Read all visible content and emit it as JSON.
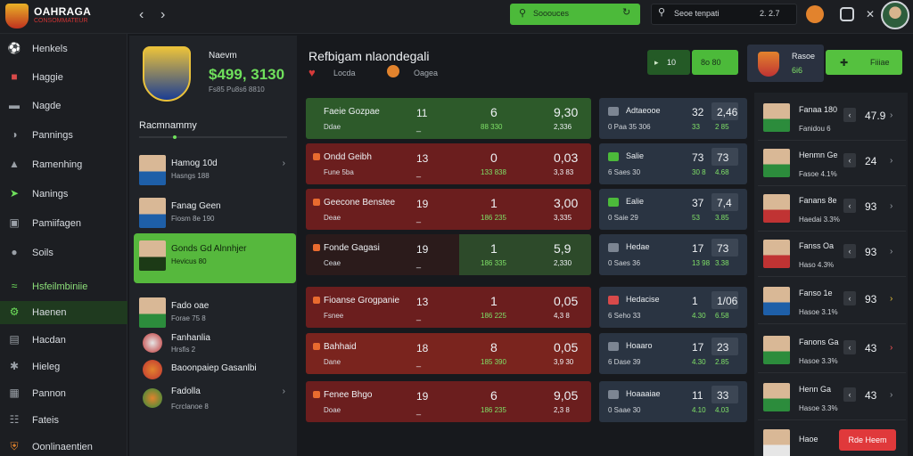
{
  "brand": {
    "name": "OAHRAGA",
    "sub": "CONSOMMATEUR"
  },
  "topbar": {
    "green_field": "Sooouces",
    "search_text": "Seoe tenpati",
    "search_count": "2. 2.7"
  },
  "sidebar": {
    "items": [
      {
        "label": "Henkels",
        "icon": "football-icon"
      },
      {
        "label": "Haggie",
        "icon": "shirt-icon"
      },
      {
        "label": "Nagde",
        "icon": "car-icon"
      },
      {
        "label": "Pannings",
        "icon": "dome-icon"
      },
      {
        "label": "Ramenhing",
        "icon": "trophy-icon"
      },
      {
        "label": "Nanings",
        "icon": "plane-icon"
      },
      {
        "label": "Pamiifagen",
        "icon": "pitch-icon"
      },
      {
        "label": "Soils",
        "icon": "ball-icon"
      },
      {
        "label": "Hsfeilmbiniie",
        "icon": "wave-icon"
      },
      {
        "label": "Haenen",
        "icon": "gear-icon"
      },
      {
        "label": "Hacdan",
        "icon": "table-icon"
      },
      {
        "label": "Hieleg",
        "icon": "tool-icon"
      },
      {
        "label": "Pannon",
        "icon": "grid-icon"
      },
      {
        "label": "Fateis",
        "icon": "calendar-icon"
      },
      {
        "label": "Oonlinaentien",
        "icon": "shield-icon"
      }
    ]
  },
  "panel": {
    "balance_label": "Naevm",
    "balance_value": "$499, 3130",
    "balance_sub": "Fs85 Pu8s6 8810",
    "ranking_title": "Racmnammy",
    "players": [
      {
        "name": "Hamog 10d",
        "sub": "Hasngs 188"
      },
      {
        "name": "Fanag Geen",
        "sub": "Fiosm 8e 190"
      },
      {
        "name": "Gonds Gd Alnnhjer",
        "sub": "Hevicus   80"
      },
      {
        "name": "Fado oae",
        "sub": "Forae 75 8"
      },
      {
        "name": "Fanhanlia",
        "sub": "Hrsfis 2"
      },
      {
        "name": "Baoonpaiep Gasanlbi"
      },
      {
        "name": "Fadolla",
        "sub": "Fcrclanoe 8"
      }
    ]
  },
  "header": {
    "title": "Refbigam nlaondegali",
    "sub1": "Locda",
    "sub2": "Oagea",
    "btn_a": "10",
    "btn_b": "8o 80",
    "team_name": "Rasoe",
    "team_value": "6i6",
    "btn_c": "Fiiiae"
  },
  "matches": [
    {
      "team": "Faeie Gozpae",
      "sub": "Ddae",
      "n1": "11",
      "n2": "_",
      "m1": "6",
      "m2": "88 330",
      "r1": "9,30",
      "r2": "2,336"
    },
    {
      "team": "Ondd Geibh",
      "sub": "Fune 5ba",
      "n1": "13",
      "n2": "_",
      "m1": "0",
      "m2": "133 838",
      "r1": "0,03",
      "r2": "3,3 83"
    },
    {
      "team": "Geecone Benstee",
      "sub": "Deae",
      "n1": "19",
      "n2": "_",
      "m1": "1",
      "m2": "186 235",
      "r1": "3,00",
      "r2": "3,335"
    },
    {
      "team": "Fonde Gagasi",
      "sub": "Ceae",
      "n1": "19",
      "n2": "_",
      "m1": "1",
      "m2": "186 335",
      "r1": "5,9",
      "r2": "2,330"
    },
    {
      "team": "Fioanse Grogpanie",
      "sub": "Fsnee",
      "n1": "13",
      "n2": "_",
      "m1": "1",
      "m2": "186 225",
      "r1": "0,05",
      "r2": "4,3 8"
    },
    {
      "team": "Bahhaid",
      "sub": "Dane",
      "n1": "18",
      "n2": "_",
      "m1": "8",
      "m2": "185 390",
      "r1": "0,05",
      "r2": "3,9 30"
    },
    {
      "team": "Fenee Bhgo",
      "sub": "Doae",
      "n1": "19",
      "n2": "_",
      "m1": "6",
      "m2": "186 235",
      "r1": "9,05",
      "r2": "2,3 8"
    }
  ],
  "mid": [
    {
      "name": "Adtaeooe",
      "sub": "0 Paa 35 306",
      "n1": "32",
      "n2": "33",
      "b1": "2,46",
      "b2": "2 85"
    },
    {
      "name": "Salie",
      "sub": "6 Saes  30",
      "n1": "73",
      "n2": "30 8",
      "b1": "73",
      "b2": "4.68"
    },
    {
      "name": "Ealie",
      "sub": "0 Saie  29",
      "n1": "37",
      "n2": "53",
      "b1": "7,4",
      "b2": "3.85"
    },
    {
      "name": "Hedae",
      "sub": "0 Saes  36",
      "n1": "17",
      "n2": "13 98",
      "b1": "73",
      "b2": "3.38"
    },
    {
      "name": "Hedacise",
      "sub": "6 Seho  33",
      "n1": "1",
      "n2": "4.30",
      "b1": "1/06",
      "b2": "6.58"
    },
    {
      "name": "Hoaaro",
      "sub": "6 Dase  39",
      "n1": "17",
      "n2": "4.30",
      "b1": "23",
      "b2": "2.85"
    },
    {
      "name": "Hoaaaiae",
      "sub": "0 Saae  30",
      "n1": "11",
      "n2": "4.10",
      "b1": "33",
      "b2": "4.03"
    }
  ],
  "right": [
    {
      "name": "Fanaa 180",
      "sub": "Fanidou 6",
      "v1": "47.9",
      "sub_color": "red"
    },
    {
      "name": "Henmn Ge",
      "sub": "Fasoe 4.1%",
      "v1": "24",
      "sub_color": "red"
    },
    {
      "name": "Fanans 8e",
      "sub": "Haedai 3.3%",
      "v1": "93",
      "sub_color": "green"
    },
    {
      "name": "Fanss Oa",
      "sub": "Haso 4.3%",
      "v1": "93",
      "sub_color": "red"
    },
    {
      "name": "Fanso 1e",
      "sub": "Hasoe 3.1%",
      "v1": "93",
      "sub_color": "red"
    },
    {
      "name": "Fanons Ga",
      "sub": "Hasoe 3.3%",
      "v1": "43",
      "sub_color": "green"
    },
    {
      "name": "Henn Ga",
      "sub": "Hasoe 3.3%",
      "v1": "43",
      "sub_color": "green"
    },
    {
      "name": "Haoe",
      "sub": "",
      "v1": "",
      "sub_color": "green"
    }
  ],
  "promo_button": "Rde Heem"
}
